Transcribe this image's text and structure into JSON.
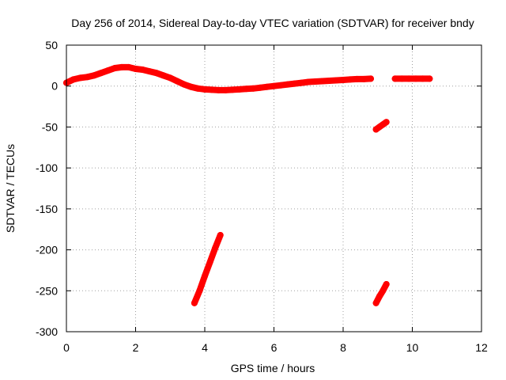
{
  "chart_data": {
    "type": "scatter",
    "title": "Day 256 of 2014, Sidereal Day-to-day VTEC variation (SDTVAR) for receiver bndy",
    "xlabel": "GPS time / hours",
    "ylabel": "SDTVAR / TECUs",
    "xlim": [
      0,
      12
    ],
    "ylim": [
      -300,
      50
    ],
    "xticks": [
      0,
      2,
      4,
      6,
      8,
      10,
      12
    ],
    "yticks": [
      50,
      0,
      -50,
      -100,
      -150,
      -200,
      -250,
      -300
    ],
    "xtick_labels": [
      "0",
      "2",
      "4",
      "6",
      "8",
      "10",
      "12"
    ],
    "ytick_labels": [
      "50",
      "0",
      "-50",
      "-100",
      "-150",
      "-200",
      "-250",
      "-300"
    ],
    "grid": true,
    "series_color": "#ff0000",
    "series": [
      {
        "name": "main-trace",
        "x": [
          0.0,
          0.2,
          0.4,
          0.6,
          0.8,
          1.0,
          1.2,
          1.4,
          1.6,
          1.8,
          2.0,
          2.2,
          2.4,
          2.6,
          2.8,
          3.0,
          3.2,
          3.4,
          3.6,
          3.8,
          4.0,
          4.2,
          4.4,
          4.6,
          4.8,
          5.0,
          5.2,
          5.4,
          5.6,
          5.8,
          6.0,
          6.2,
          6.4,
          6.6,
          6.8,
          7.0,
          7.2,
          7.4,
          7.6,
          7.8,
          8.0,
          8.2,
          8.4,
          8.6,
          8.8
        ],
        "y": [
          4,
          8,
          10,
          11,
          13,
          16,
          19,
          22,
          23,
          23,
          21,
          20,
          18,
          16,
          13,
          10,
          6,
          2,
          -1,
          -3,
          -4,
          -4.5,
          -5,
          -5,
          -4.5,
          -4,
          -3.5,
          -3,
          -2,
          -1,
          0,
          1,
          2,
          3,
          4,
          5,
          5.5,
          6,
          6.5,
          7,
          7.5,
          8,
          8.5,
          8.5,
          9
        ]
      },
      {
        "name": "late-segment",
        "x": [
          9.5,
          9.7,
          9.9,
          10.1,
          10.3,
          10.5
        ],
        "y": [
          9,
          9,
          9,
          9,
          9,
          9
        ]
      },
      {
        "name": "steep-segment-a",
        "x": [
          3.7,
          3.85,
          4.0,
          4.15,
          4.3,
          4.45
        ],
        "y": [
          -265,
          -250,
          -232,
          -215,
          -198,
          -182
        ]
      },
      {
        "name": "segment-b-upper",
        "x": [
          8.95,
          9.05,
          9.15,
          9.25
        ],
        "y": [
          -53,
          -50,
          -47,
          -44
        ]
      },
      {
        "name": "segment-b-lower",
        "x": [
          8.95,
          9.05,
          9.15,
          9.25
        ],
        "y": [
          -265,
          -257,
          -250,
          -242
        ]
      }
    ]
  }
}
